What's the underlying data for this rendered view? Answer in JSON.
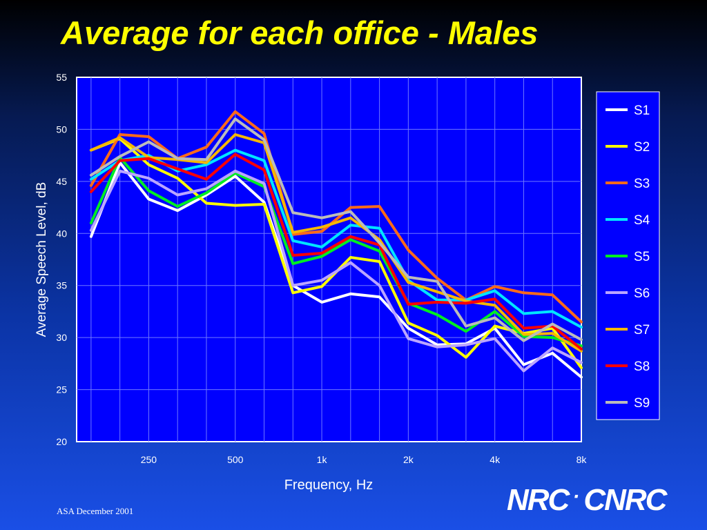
{
  "title": "Average for each office - Males",
  "footer": "ASA December 2001",
  "logo": {
    "left": "NRC",
    "separator": "·",
    "right": "CNRC"
  },
  "chart_data": {
    "type": "line",
    "xlabel": "Frequency, Hz",
    "ylabel": "Average Speech Level, dB",
    "ylim": [
      20,
      55
    ],
    "yticks": [
      "20",
      "25",
      "30",
      "35",
      "40",
      "45",
      "50",
      "55"
    ],
    "x_tick_labels": [
      {
        "index": 2,
        "label": "250"
      },
      {
        "index": 5,
        "label": "500"
      },
      {
        "index": 8,
        "label": "1k"
      },
      {
        "index": 11,
        "label": "2k"
      },
      {
        "index": 14,
        "label": "4k"
      },
      {
        "index": 17,
        "label": "8k"
      }
    ],
    "x_index_range": [
      -0.5,
      17
    ],
    "grid": true,
    "legend_position": "right",
    "series": [
      {
        "name": "S1",
        "color": "#ffffff",
        "values": [
          39.7,
          46.8,
          43.3,
          42.2,
          43.7,
          45.5,
          43.0,
          35.0,
          33.4,
          34.2,
          33.9,
          30.9,
          29.3,
          29.4,
          30.9,
          27.4,
          28.5,
          26.2
        ]
      },
      {
        "name": "S2",
        "color": "#ffff00",
        "values": [
          48.0,
          49.1,
          46.6,
          45.3,
          42.9,
          42.7,
          42.8,
          34.3,
          34.9,
          37.7,
          37.3,
          31.4,
          30.2,
          28.1,
          31.1,
          30.4,
          30.9,
          27.1
        ]
      },
      {
        "name": "S3",
        "color": "#ff6a1a",
        "values": [
          44.6,
          49.5,
          49.3,
          47.2,
          48.3,
          51.7,
          49.6,
          39.9,
          40.2,
          42.5,
          42.6,
          38.4,
          35.7,
          33.6,
          34.9,
          34.3,
          34.1,
          31.5
        ]
      },
      {
        "name": "S4",
        "color": "#00e5ff",
        "values": [
          45.2,
          47.0,
          47.5,
          46.0,
          46.6,
          48.0,
          47.0,
          39.3,
          38.7,
          40.8,
          40.5,
          35.5,
          33.6,
          33.6,
          34.5,
          32.3,
          32.5,
          31.0
        ]
      },
      {
        "name": "S5",
        "color": "#00ee22",
        "values": [
          41.0,
          47.3,
          44.1,
          42.6,
          43.9,
          45.8,
          44.5,
          37.1,
          37.8,
          39.4,
          38.3,
          33.3,
          32.2,
          30.6,
          32.5,
          30.1,
          30.0,
          29.2
        ]
      },
      {
        "name": "S6",
        "color": "#bba5ff",
        "values": [
          40.3,
          46.0,
          45.3,
          43.7,
          44.3,
          46.0,
          44.8,
          35.0,
          35.5,
          37.2,
          35.0,
          29.9,
          29.1,
          29.3,
          29.9,
          26.8,
          29.0,
          27.6
        ]
      },
      {
        "name": "S7",
        "color": "#f5b700",
        "values": [
          48.0,
          49.2,
          47.3,
          47.1,
          46.8,
          49.5,
          48.7,
          40.1,
          40.6,
          41.5,
          39.4,
          35.3,
          34.4,
          33.5,
          33.1,
          30.3,
          30.4,
          28.7
        ]
      },
      {
        "name": "S8",
        "color": "#ff0000",
        "values": [
          44.0,
          47.0,
          47.2,
          46.2,
          45.2,
          47.6,
          46.1,
          37.9,
          38.1,
          39.7,
          38.9,
          33.2,
          33.4,
          33.3,
          33.7,
          30.9,
          31.1,
          28.9
        ]
      },
      {
        "name": "S9",
        "color": "#bbbbbb",
        "values": [
          45.6,
          47.4,
          48.8,
          47.2,
          47.1,
          51.0,
          49.0,
          42.0,
          41.5,
          42.1,
          39.1,
          35.8,
          35.4,
          31.1,
          31.9,
          29.7,
          31.3,
          29.8
        ]
      }
    ]
  }
}
